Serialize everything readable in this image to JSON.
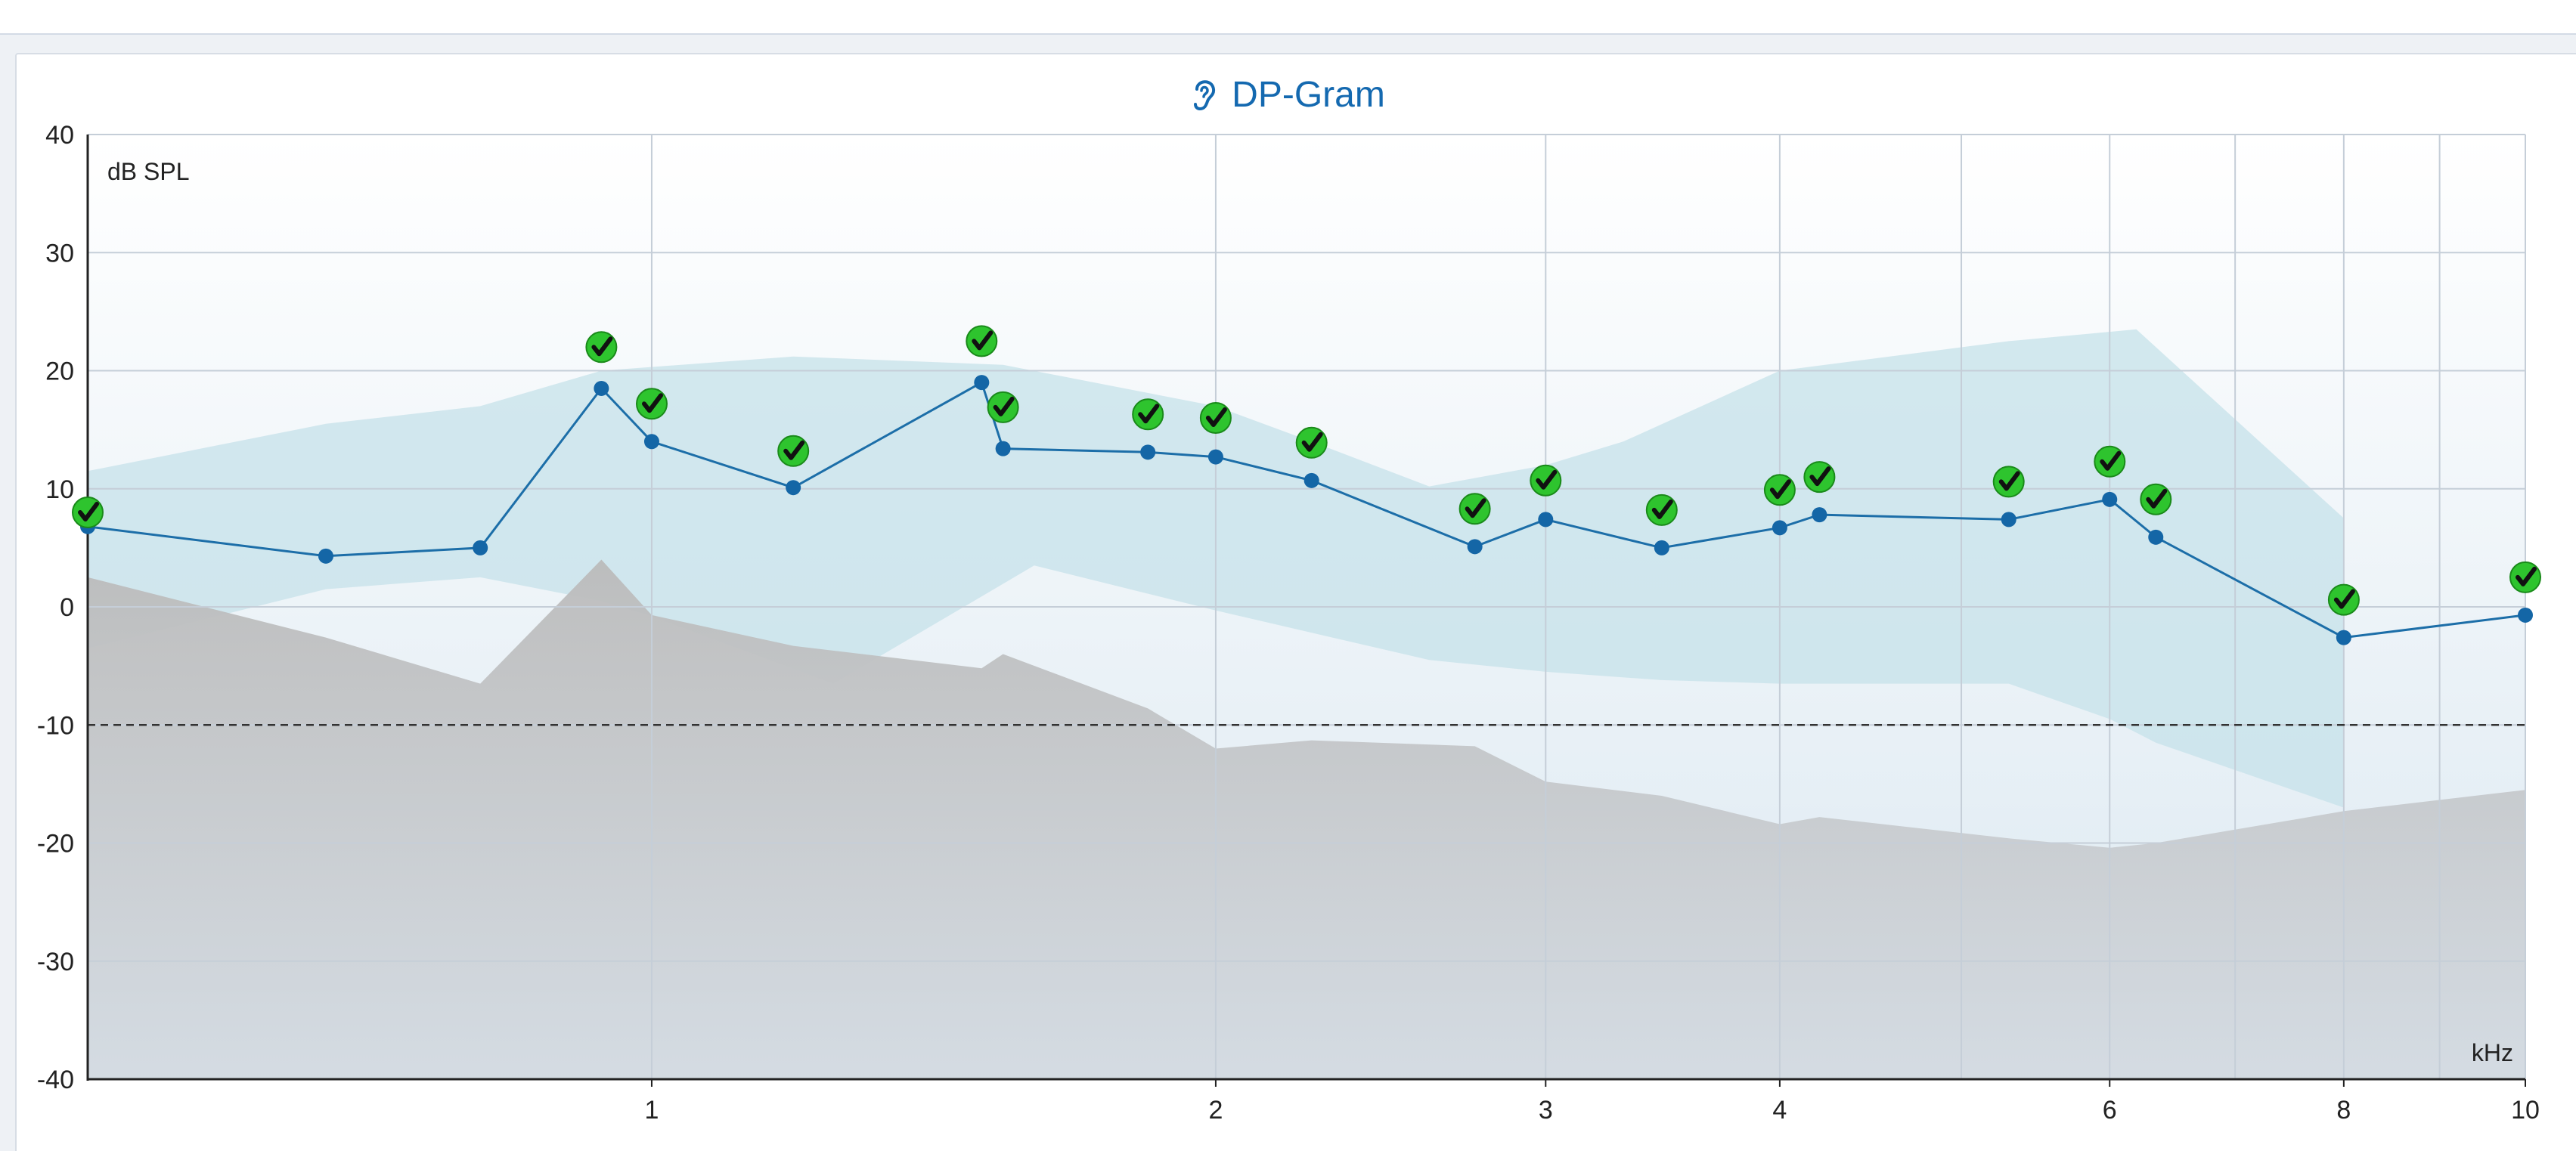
{
  "chart_data": {
    "type": "line",
    "title": "DP-Gram",
    "title_icon": "ear-icon",
    "ylabel": "dB SPL",
    "xlabel": "kHz",
    "x_scale": "log",
    "xlim": [
      0.5,
      10
    ],
    "ylim": [
      -40,
      40
    ],
    "y_ticks": [
      40,
      30,
      20,
      10,
      0,
      -10,
      -20,
      -30,
      -40
    ],
    "x_ticks": [
      {
        "value": 1,
        "label": "1"
      },
      {
        "value": 2,
        "label": "2"
      },
      {
        "value": 3,
        "label": "3"
      },
      {
        "value": 4,
        "label": "4"
      },
      {
        "value": 6,
        "label": "6"
      },
      {
        "value": 8,
        "label": "8"
      },
      {
        "value": 10,
        "label": "10"
      }
    ],
    "x_minor_gridlines": [
      5,
      7,
      9
    ],
    "grid": true,
    "reference_line": {
      "y": -10,
      "style": "dashed"
    },
    "series": [
      {
        "values": [
          {
            "x": 0.5,
            "y": 6.8
          },
          {
            "x": 0.67,
            "y": 4.3
          },
          {
            "x": 0.81,
            "y": 5.0
          },
          {
            "x": 0.94,
            "y": 18.5
          },
          {
            "x": 1.0,
            "y": 14.0
          },
          {
            "x": 1.19,
            "y": 10.1
          },
          {
            "x": 1.5,
            "y": 19.0
          },
          {
            "x": 1.54,
            "y": 13.4
          },
          {
            "x": 1.84,
            "y": 13.1
          },
          {
            "x": 2.0,
            "y": 12.7
          },
          {
            "x": 2.25,
            "y": 10.7
          },
          {
            "x": 2.75,
            "y": 5.1
          },
          {
            "x": 3.0,
            "y": 7.4
          },
          {
            "x": 3.46,
            "y": 5.0
          },
          {
            "x": 4.0,
            "y": 6.7
          },
          {
            "x": 4.2,
            "y": 7.8
          },
          {
            "x": 5.3,
            "y": 7.4
          },
          {
            "x": 6.0,
            "y": 9.1
          },
          {
            "x": 6.35,
            "y": 5.9
          },
          {
            "x": 8.0,
            "y": -2.6
          },
          {
            "x": 10.0,
            "y": -0.7
          }
        ]
      }
    ],
    "pass_markers": [
      {
        "x": 0.5,
        "y": 8.0
      },
      {
        "x": 0.94,
        "y": 22.0
      },
      {
        "x": 1.0,
        "y": 17.2
      },
      {
        "x": 1.19,
        "y": 13.2
      },
      {
        "x": 1.5,
        "y": 22.5
      },
      {
        "x": 1.54,
        "y": 16.9
      },
      {
        "x": 1.84,
        "y": 16.3
      },
      {
        "x": 2.0,
        "y": 16.0
      },
      {
        "x": 2.25,
        "y": 13.9
      },
      {
        "x": 2.75,
        "y": 8.3
      },
      {
        "x": 3.0,
        "y": 10.7
      },
      {
        "x": 3.46,
        "y": 8.2
      },
      {
        "x": 4.0,
        "y": 9.9
      },
      {
        "x": 4.2,
        "y": 11.0
      },
      {
        "x": 5.3,
        "y": 10.6
      },
      {
        "x": 6.0,
        "y": 12.3
      },
      {
        "x": 6.35,
        "y": 9.1
      },
      {
        "x": 8.0,
        "y": 0.6
      },
      {
        "x": 10.0,
        "y": 2.5
      }
    ],
    "normative_band": {
      "upper": [
        {
          "x": 0.5,
          "y": 11.5
        },
        {
          "x": 0.67,
          "y": 15.5
        },
        {
          "x": 0.81,
          "y": 17.0
        },
        {
          "x": 0.94,
          "y": 20.0
        },
        {
          "x": 1.19,
          "y": 21.2
        },
        {
          "x": 1.54,
          "y": 20.5
        },
        {
          "x": 2.0,
          "y": 17.0
        },
        {
          "x": 2.25,
          "y": 14.0
        },
        {
          "x": 2.6,
          "y": 10.2
        },
        {
          "x": 3.0,
          "y": 12.0
        },
        {
          "x": 3.3,
          "y": 14.0
        },
        {
          "x": 4.0,
          "y": 20.0
        },
        {
          "x": 5.3,
          "y": 22.5
        },
        {
          "x": 6.2,
          "y": 23.5
        },
        {
          "x": 8.0,
          "y": 7.5
        }
      ],
      "lower": [
        {
          "x": 8.0,
          "y": -17.0
        },
        {
          "x": 6.35,
          "y": -11.5
        },
        {
          "x": 6.0,
          "y": -9.5
        },
        {
          "x": 5.3,
          "y": -6.5
        },
        {
          "x": 4.0,
          "y": -6.5
        },
        {
          "x": 3.46,
          "y": -6.2
        },
        {
          "x": 3.0,
          "y": -5.5
        },
        {
          "x": 2.6,
          "y": -4.5
        },
        {
          "x": 2.0,
          "y": -0.3
        },
        {
          "x": 1.6,
          "y": 3.5
        },
        {
          "x": 1.25,
          "y": -6.5
        },
        {
          "x": 1.0,
          "y": -0.8
        },
        {
          "x": 0.94,
          "y": 0.5
        },
        {
          "x": 0.81,
          "y": 2.5
        },
        {
          "x": 0.67,
          "y": 1.5
        },
        {
          "x": 0.5,
          "y": -3.5
        }
      ]
    },
    "noise_floor": [
      {
        "x": 0.5,
        "y": 2.5
      },
      {
        "x": 0.67,
        "y": -2.6
      },
      {
        "x": 0.81,
        "y": -6.5
      },
      {
        "x": 0.94,
        "y": 4.0
      },
      {
        "x": 1.0,
        "y": -0.7
      },
      {
        "x": 1.19,
        "y": -3.3
      },
      {
        "x": 1.5,
        "y": -5.2
      },
      {
        "x": 1.54,
        "y": -4.0
      },
      {
        "x": 1.84,
        "y": -8.6
      },
      {
        "x": 2.0,
        "y": -12.0
      },
      {
        "x": 2.25,
        "y": -11.3
      },
      {
        "x": 2.75,
        "y": -11.8
      },
      {
        "x": 3.0,
        "y": -14.8
      },
      {
        "x": 3.46,
        "y": -16.0
      },
      {
        "x": 4.0,
        "y": -18.4
      },
      {
        "x": 4.2,
        "y": -17.8
      },
      {
        "x": 5.3,
        "y": -19.6
      },
      {
        "x": 6.0,
        "y": -20.4
      },
      {
        "x": 6.35,
        "y": -20.0
      },
      {
        "x": 8.0,
        "y": -17.3
      },
      {
        "x": 10.0,
        "y": -15.5
      }
    ],
    "colors": {
      "line": "#1c6ea8",
      "point": "#1466a6",
      "normative_band": "#c6e2e9",
      "noise_floor": "#bdbdbd",
      "pass_marker": "#2ec42e",
      "title": "#1469b0"
    }
  }
}
